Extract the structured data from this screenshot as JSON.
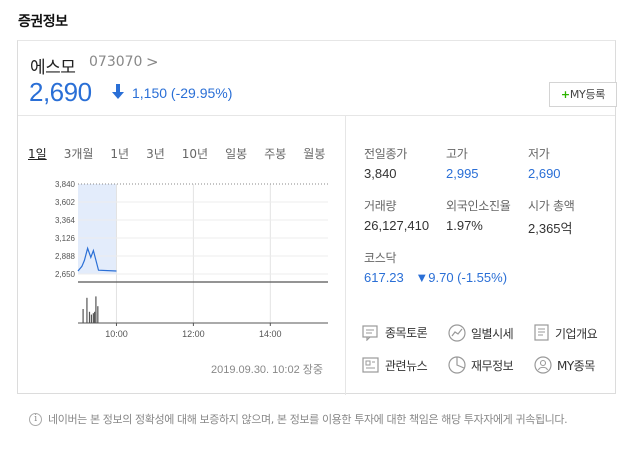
{
  "section_title": "증권정보",
  "stock": {
    "name": "에스모",
    "code": "073070",
    "code_arrow": ">",
    "price": "2,690",
    "change": "1,150 (-29.95%)",
    "direction": "down",
    "accent_color": "#2a6fd6"
  },
  "my_button": {
    "plus": "+",
    "label": "MY등록"
  },
  "periods": [
    {
      "label": "1일",
      "active": true
    },
    {
      "label": "3개월",
      "active": false
    },
    {
      "label": "1년",
      "active": false
    },
    {
      "label": "3년",
      "active": false
    },
    {
      "label": "10년",
      "active": false
    },
    {
      "label": "일봉",
      "active": false
    },
    {
      "label": "주봉",
      "active": false
    },
    {
      "label": "월봉",
      "active": false
    }
  ],
  "chart_data": {
    "type": "line",
    "y_ticks": [
      "3,840",
      "3,602",
      "3,364",
      "3,126",
      "2,888",
      "2,650"
    ],
    "y_values": [
      3840,
      3602,
      3364,
      3126,
      2888,
      2650
    ],
    "ylim": [
      2650,
      3840
    ],
    "x_ticks": [
      "10:00",
      "12:00",
      "14:00"
    ],
    "x_tick_values": [
      600,
      720,
      840
    ],
    "xlim": [
      540,
      930
    ],
    "price_points": [
      [
        540,
        2690
      ],
      [
        546,
        2750
      ],
      [
        550,
        2830
      ],
      [
        555,
        2990
      ],
      [
        560,
        2870
      ],
      [
        564,
        2960
      ],
      [
        568,
        2830
      ],
      [
        572,
        2700
      ],
      [
        600,
        2690
      ]
    ],
    "volume_bars": [
      [
        547,
        0.5
      ],
      [
        553,
        0.9
      ],
      [
        557,
        0.4
      ],
      [
        560,
        0.3
      ],
      [
        563,
        0.35
      ],
      [
        565,
        0.4
      ],
      [
        567,
        0.95
      ],
      [
        570,
        0.6
      ]
    ],
    "grid": true
  },
  "datetime": "2019.09.30.  10:02  장중",
  "stats": {
    "prev_close": {
      "label": "전일종가",
      "value": "3,840"
    },
    "high": {
      "label": "고가",
      "value": "2,995"
    },
    "low": {
      "label": "저가",
      "value": "2,690"
    },
    "volume": {
      "label": "거래량",
      "value": "26,127,410"
    },
    "foreign": {
      "label": "외국인소진율",
      "value": "1.97%"
    },
    "market_cap": {
      "label": "시가 총액",
      "value": "2,365억"
    },
    "index": {
      "label": "코스닥",
      "value": "617.23",
      "change": "▼9.70 (-1.55%)"
    }
  },
  "links": [
    {
      "label": "종목토론",
      "icon": "discussion-icon"
    },
    {
      "label": "일별시세",
      "icon": "trend-icon"
    },
    {
      "label": "기업개요",
      "icon": "document-icon"
    },
    {
      "label": "관련뉴스",
      "icon": "news-icon"
    },
    {
      "label": "재무정보",
      "icon": "pie-chart-icon"
    },
    {
      "label": "MY종목",
      "icon": "user-icon"
    }
  ],
  "disclaimer": "네이버는 본 정보의 정확성에 대해 보증하지 않으며, 본 정보를 이용한 투자에 대한 책임은 해당 투자자에게 귀속됩니다.",
  "disclaimer_icon": "i"
}
